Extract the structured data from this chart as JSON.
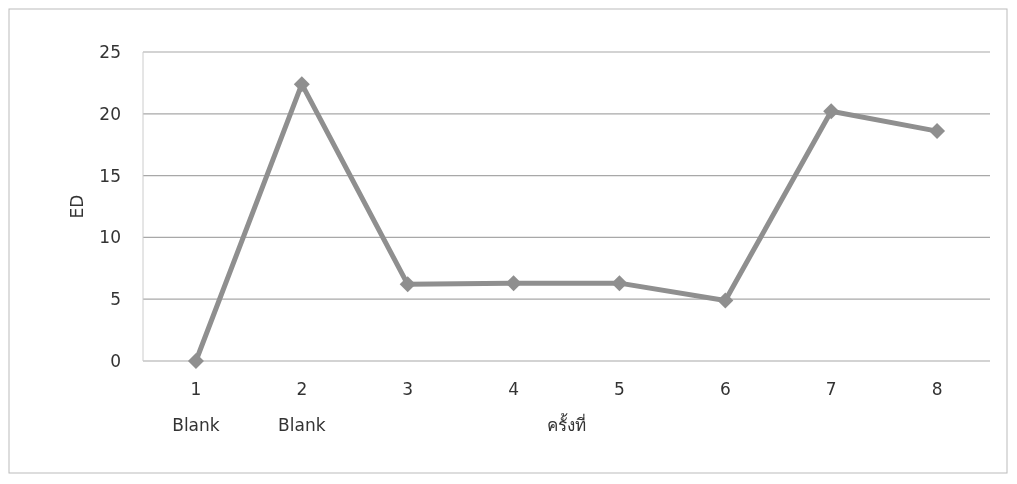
{
  "chart_data": {
    "type": "line",
    "ylabel": "ED",
    "xlabel": "ครั้งที่",
    "categories": [
      "1\nBlank",
      "2\nBlank",
      "3",
      "4",
      "5",
      "6",
      "7",
      "8"
    ],
    "series": [
      {
        "color": "#8f8f8f",
        "values": [
          0,
          22.4,
          6.2,
          6.3,
          6.3,
          4.9,
          20.2,
          18.6
        ]
      }
    ],
    "ylim": [
      0,
      25
    ],
    "yticks": [
      0,
      5,
      10,
      15,
      20,
      25
    ],
    "grid": "y",
    "marker": "diamond"
  }
}
